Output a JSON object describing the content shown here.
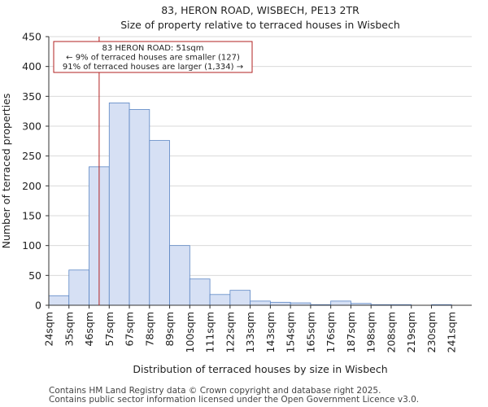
{
  "chart_data": {
    "type": "bar",
    "title": "83, HERON ROAD, WISBECH, PE13 2TR",
    "subtitle": "Size of property relative to terraced houses in Wisbech",
    "xlabel": "Distribution of terraced houses by size in Wisbech",
    "ylabel": "Number of terraced properties",
    "categories": [
      "24sqm",
      "35sqm",
      "46sqm",
      "57sqm",
      "67sqm",
      "78sqm",
      "89sqm",
      "100sqm",
      "111sqm",
      "122sqm",
      "133sqm",
      "143sqm",
      "154sqm",
      "165sqm",
      "176sqm",
      "187sqm",
      "198sqm",
      "208sqm",
      "219sqm",
      "230sqm",
      "241sqm"
    ],
    "values": [
      16,
      59,
      232,
      339,
      328,
      276,
      100,
      44,
      18,
      25,
      7,
      5,
      4,
      1,
      7,
      3,
      1,
      1,
      0,
      1,
      0
    ],
    "ylim": [
      0,
      450
    ],
    "yticks": [
      0,
      50,
      100,
      150,
      200,
      250,
      300,
      350,
      400,
      450
    ],
    "bar_color": "#d6e0f4",
    "bar_edge_color": "#5b86c4",
    "marker": {
      "value_index": 2.5,
      "color": "#b22222",
      "label_lines": [
        "83 HERON ROAD: 51sqm",
        "← 9% of terraced houses are smaller (127)",
        "91% of terraced houses are larger (1,334) →"
      ]
    }
  },
  "footer": {
    "line1": "Contains HM Land Registry data © Crown copyright and database right 2025.",
    "line2": "Contains public sector information licensed under the Open Government Licence v3.0."
  }
}
